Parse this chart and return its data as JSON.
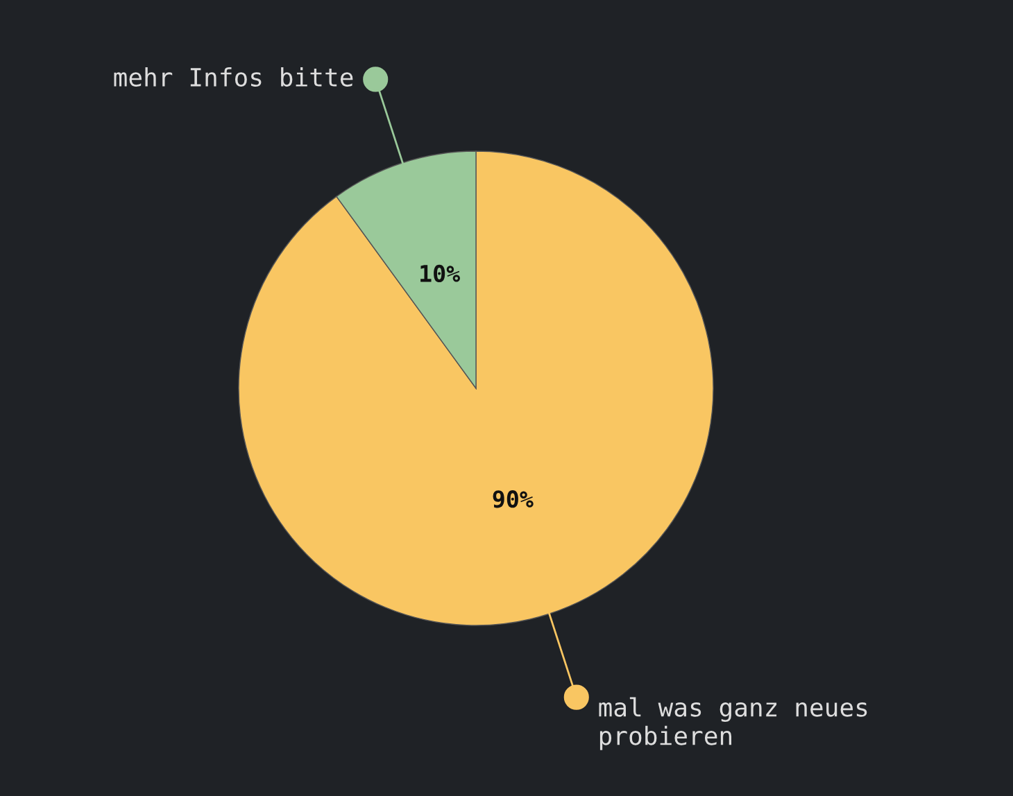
{
  "chart_data": {
    "type": "pie",
    "categories": [
      "mal was ganz neues\nprobieren",
      "mehr Infos bitte"
    ],
    "values": [
      90,
      10
    ],
    "colors": [
      "#f9c662",
      "#9ac99a"
    ],
    "value_labels": [
      "90%",
      "10%"
    ]
  }
}
